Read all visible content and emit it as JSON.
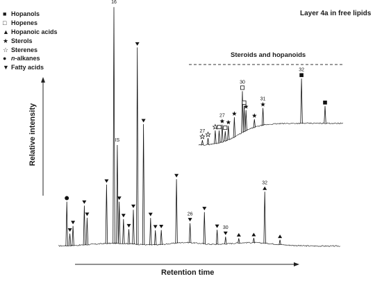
{
  "chart_data": {
    "type": "line",
    "title": "Layer 4a in free lipids",
    "xlabel": "Retention time",
    "ylabel": "Relative intensity",
    "inset_title": "Steroids and hopanoids",
    "legend": [
      {
        "symbol": "■",
        "name": "Hopanols",
        "icon": "filled-square-icon"
      },
      {
        "symbol": "□",
        "name": "Hopenes",
        "icon": "open-square-icon"
      },
      {
        "symbol": "▲",
        "name": "Hopanoic acids",
        "icon": "filled-triangle-icon"
      },
      {
        "symbol": "★",
        "name": "Sterols",
        "icon": "filled-star-icon"
      },
      {
        "symbol": "☆",
        "name": "Sterenes",
        "icon": "open-star-icon"
      },
      {
        "symbol": "●",
        "name_prefix": "n",
        "name_suffix": "-alkanes",
        "icon": "filled-circle-icon"
      },
      {
        "symbol": "▼",
        "name": "Fatty acids",
        "icon": "inverted-triangle-icon"
      }
    ],
    "main_peaks": [
      {
        "rt": 3.0,
        "h": 0.18,
        "marker": "circle"
      },
      {
        "rt": 4.1,
        "h": 0.05,
        "marker": "down"
      },
      {
        "rt": 5.2,
        "h": 0.08,
        "marker": "down"
      },
      {
        "rt": 9.2,
        "h": 0.16,
        "marker": "down"
      },
      {
        "rt": 10.2,
        "h": 0.11,
        "marker": "down"
      },
      {
        "rt": 17.1,
        "h": 0.24,
        "marker": "down"
      },
      {
        "rt": 19.7,
        "h": 0.96,
        "label": "16"
      },
      {
        "rt": 20.9,
        "h": 0.4,
        "label": "IS"
      },
      {
        "rt": 21.6,
        "h": 0.17,
        "marker": "down"
      },
      {
        "rt": 23.1,
        "h": 0.1,
        "marker": "down"
      },
      {
        "rt": 25.0,
        "h": 0.06,
        "marker": "down"
      },
      {
        "rt": 26.6,
        "h": 0.14,
        "marker": "down"
      },
      {
        "rt": 28.0,
        "h": 0.8,
        "marker": "down"
      },
      {
        "rt": 30.2,
        "h": 0.49,
        "marker": "down"
      },
      {
        "rt": 32.7,
        "h": 0.11,
        "marker": "down"
      },
      {
        "rt": 34.4,
        "h": 0.06,
        "marker": "down"
      },
      {
        "rt": 36.5,
        "h": 0.06,
        "marker": "down"
      },
      {
        "rt": 41.9,
        "h": 0.26,
        "marker": "down"
      },
      {
        "rt": 46.7,
        "h": 0.08,
        "label": "26",
        "marker": "down"
      },
      {
        "rt": 51.8,
        "h": 0.13,
        "marker": "down"
      },
      {
        "rt": 56.3,
        "h": 0.06,
        "marker": "down"
      },
      {
        "rt": 59.3,
        "h": 0.03,
        "label": "30",
        "marker": "down"
      },
      {
        "rt": 64.0,
        "h": 0.02,
        "marker": "up"
      },
      {
        "rt": 69.3,
        "h": 0.02,
        "marker": "up"
      },
      {
        "rt": 73.2,
        "h": 0.21,
        "label": "32",
        "marker": "up"
      },
      {
        "rt": 78.6,
        "h": 0.02,
        "marker": "up"
      }
    ],
    "inset_peaks": [
      {
        "rt": 2.6,
        "h": 0.06,
        "label": "27",
        "marker": "open_star"
      },
      {
        "rt": 6.5,
        "h": 0.08,
        "marker": "open_star"
      },
      {
        "rt": 11.5,
        "h": 0.16,
        "marker": "open_star"
      },
      {
        "rt": 14.2,
        "h": 0.15,
        "marker": "open_square"
      },
      {
        "rt": 16.3,
        "h": 0.21,
        "label": "27",
        "marker": "star"
      },
      {
        "rt": 18.4,
        "h": 0.12,
        "marker": "open_square"
      },
      {
        "rt": 20.6,
        "h": 0.17,
        "marker": "star"
      },
      {
        "rt": 24.7,
        "h": 0.24,
        "marker": "star"
      },
      {
        "rt": 30.3,
        "h": 0.5,
        "label": "30",
        "marker": "open_square"
      },
      {
        "rt": 31.5,
        "h": 0.31,
        "marker": "open_square"
      },
      {
        "rt": 32.8,
        "h": 0.25,
        "marker": "star"
      },
      {
        "rt": 38.6,
        "h": 0.1,
        "marker": "star"
      },
      {
        "rt": 44.5,
        "h": 0.21,
        "label": "31",
        "marker": "star"
      },
      {
        "rt": 71.2,
        "h": 0.54,
        "label": "32",
        "marker": "square"
      },
      {
        "rt": 87.5,
        "h": 0.21,
        "marker": "square"
      }
    ]
  }
}
